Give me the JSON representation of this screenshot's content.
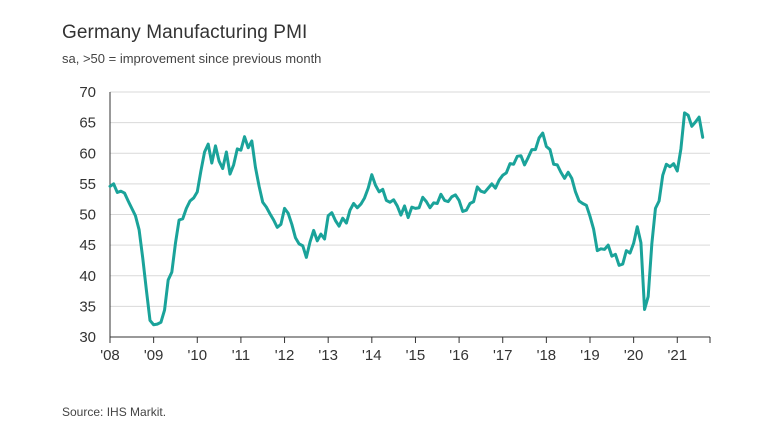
{
  "chart_data": {
    "type": "line",
    "title": "Germany Manufacturing PMI",
    "subtitle": "sa, >50 = improvement since previous month",
    "source": "Source: IHS Markit.",
    "xlabel": "",
    "ylabel": "",
    "ylim": [
      30,
      70
    ],
    "yticks": [
      30,
      35,
      40,
      45,
      50,
      55,
      60,
      65,
      70
    ],
    "xlim": [
      2008.0,
      2021.75
    ],
    "xticks": [
      {
        "value": 2008,
        "label": "'08"
      },
      {
        "value": 2009,
        "label": "'09"
      },
      {
        "value": 2010,
        "label": "'10"
      },
      {
        "value": 2011,
        "label": "'11"
      },
      {
        "value": 2012,
        "label": "'12"
      },
      {
        "value": 2013,
        "label": "'13"
      },
      {
        "value": 2014,
        "label": "'14"
      },
      {
        "value": 2015,
        "label": "'15"
      },
      {
        "value": 2016,
        "label": "'16"
      },
      {
        "value": 2017,
        "label": "'17"
      },
      {
        "value": 2018,
        "label": "'18"
      },
      {
        "value": 2019,
        "label": "'19"
      },
      {
        "value": 2020,
        "label": "'20"
      },
      {
        "value": 2021,
        "label": "'21"
      }
    ],
    "grid": true,
    "line_color": "#1aa39a",
    "grid_color": "#d9d9d9",
    "series": [
      {
        "x": [
          2008.0,
          2008.083,
          2008.167,
          2008.25,
          2008.333,
          2008.417,
          2008.5,
          2008.583,
          2008.667,
          2008.75,
          2008.833,
          2008.917,
          2009.0,
          2009.083,
          2009.167,
          2009.25,
          2009.333,
          2009.417,
          2009.5,
          2009.583,
          2009.667,
          2009.75,
          2009.833,
          2009.917,
          2010.0,
          2010.083,
          2010.167,
          2010.25,
          2010.333,
          2010.417,
          2010.5,
          2010.583,
          2010.667,
          2010.75,
          2010.833,
          2010.917,
          2011.0,
          2011.083,
          2011.167,
          2011.25,
          2011.333,
          2011.417,
          2011.5,
          2011.583,
          2011.667,
          2011.75,
          2011.833,
          2011.917,
          2012.0,
          2012.083,
          2012.167,
          2012.25,
          2012.333,
          2012.417,
          2012.5,
          2012.583,
          2012.667,
          2012.75,
          2012.833,
          2012.917,
          2013.0,
          2013.083,
          2013.167,
          2013.25,
          2013.333,
          2013.417,
          2013.5,
          2013.583,
          2013.667,
          2013.75,
          2013.833,
          2013.917,
          2014.0,
          2014.083,
          2014.167,
          2014.25,
          2014.333,
          2014.417,
          2014.5,
          2014.583,
          2014.667,
          2014.75,
          2014.833,
          2014.917,
          2015.0,
          2015.083,
          2015.167,
          2015.25,
          2015.333,
          2015.417,
          2015.5,
          2015.583,
          2015.667,
          2015.75,
          2015.833,
          2015.917,
          2016.0,
          2016.083,
          2016.167,
          2016.25,
          2016.333,
          2016.417,
          2016.5,
          2016.583,
          2016.667,
          2016.75,
          2016.833,
          2016.917,
          2017.0,
          2017.083,
          2017.167,
          2017.25,
          2017.333,
          2017.417,
          2017.5,
          2017.583,
          2017.667,
          2017.75,
          2017.833,
          2017.917,
          2018.0,
          2018.083,
          2018.167,
          2018.25,
          2018.333,
          2018.417,
          2018.5,
          2018.583,
          2018.667,
          2018.75,
          2018.833,
          2018.917,
          2019.0,
          2019.083,
          2019.167,
          2019.25,
          2019.333,
          2019.417,
          2019.5,
          2019.583,
          2019.667,
          2019.75,
          2019.833,
          2019.917,
          2020.0,
          2020.083,
          2020.167,
          2020.25,
          2020.333,
          2020.417,
          2020.5,
          2020.583,
          2020.667,
          2020.75,
          2020.833,
          2020.917,
          2021.0,
          2021.083,
          2021.167,
          2021.25,
          2021.333,
          2021.417,
          2021.5,
          2021.583
        ],
        "values": [
          54.6,
          55.0,
          53.6,
          53.8,
          53.5,
          52.2,
          51.0,
          49.8,
          47.5,
          42.9,
          37.7,
          32.7,
          32.0,
          32.1,
          32.4,
          34.4,
          39.3,
          40.6,
          45.3,
          49.1,
          49.3,
          51.0,
          52.2,
          52.7,
          53.7,
          57.1,
          60.2,
          61.5,
          58.4,
          61.2,
          58.7,
          57.5,
          60.2,
          56.6,
          58.1,
          60.7,
          60.5,
          62.7,
          60.9,
          62.0,
          57.7,
          54.6,
          52.0,
          51.2,
          50.1,
          49.1,
          47.9,
          48.4,
          51.0,
          50.2,
          48.4,
          46.2,
          45.2,
          44.9,
          43.0,
          45.5,
          47.4,
          45.7,
          46.8,
          46.0,
          49.8,
          50.3,
          49.0,
          48.1,
          49.4,
          48.6,
          50.7,
          51.8,
          51.1,
          51.7,
          52.7,
          54.3,
          56.5,
          54.8,
          53.7,
          54.1,
          52.3,
          52.0,
          52.4,
          51.4,
          49.9,
          51.4,
          49.5,
          51.2,
          51.0,
          51.1,
          52.8,
          52.1,
          51.1,
          51.9,
          51.8,
          53.3,
          52.3,
          52.1,
          52.9,
          53.2,
          52.3,
          50.5,
          50.7,
          51.8,
          52.1,
          54.5,
          53.8,
          53.6,
          54.3,
          55.0,
          54.3,
          55.6,
          56.4,
          56.8,
          58.3,
          58.2,
          59.5,
          59.6,
          58.1,
          59.3,
          60.6,
          60.6,
          62.5,
          63.3,
          61.1,
          60.6,
          58.2,
          58.1,
          56.9,
          55.9,
          56.9,
          55.9,
          53.7,
          52.2,
          51.8,
          51.5,
          49.7,
          47.6,
          44.1,
          44.4,
          44.3,
          45.0,
          43.2,
          43.5,
          41.7,
          41.9,
          44.1,
          43.7,
          45.3,
          48.0,
          45.4,
          34.5,
          36.6,
          45.2,
          51.0,
          52.2,
          56.4,
          58.2,
          57.8,
          58.3,
          57.1,
          60.7,
          66.6,
          66.2,
          64.4,
          65.1,
          65.9,
          62.6
        ]
      }
    ]
  }
}
